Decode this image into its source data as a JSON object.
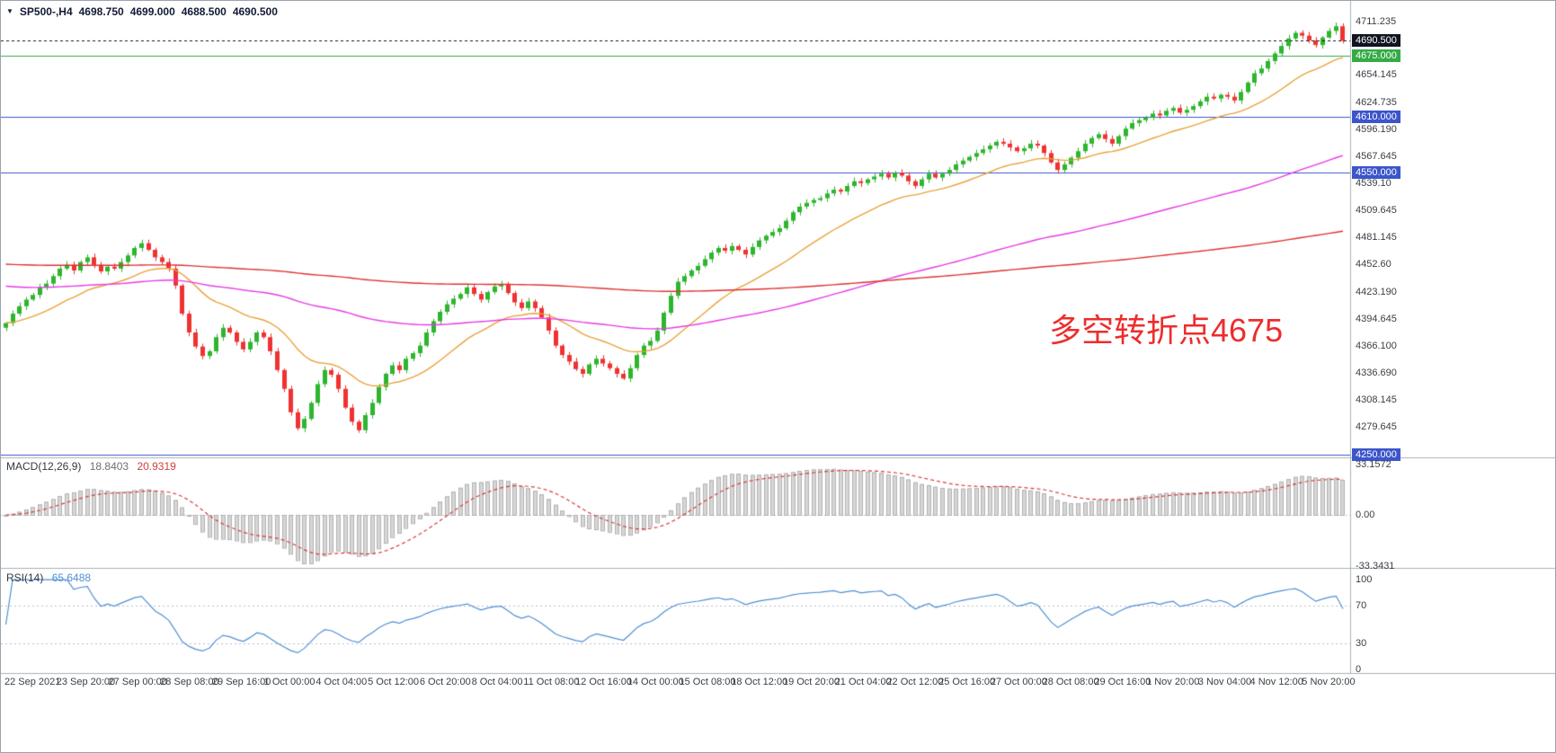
{
  "window": {
    "background": "#ffffff",
    "border_color": "#9aa3ad"
  },
  "header": {
    "dropdown_icon": "▼",
    "symbol_period": "SP500-,H4",
    "open": "4698.750",
    "high": "4699.000",
    "low": "4688.500",
    "close": "4690.500"
  },
  "annotation": {
    "text": "多空转折点4675",
    "color": "#ee2c2c"
  },
  "price_axis": {
    "ticks": [
      "4711.235",
      "4654.145",
      "4624.735",
      "4596.190",
      "4567.645",
      "4539.10",
      "4509.645",
      "4481.145",
      "4452.60",
      "4423.190",
      "4394.645",
      "4366.100",
      "4336.690",
      "4308.145",
      "4279.645"
    ]
  },
  "price_levels": [
    {
      "label": "4690.500",
      "value": 4690.5,
      "color": "#10141f",
      "style": "dashed"
    },
    {
      "label": "4675.000",
      "value": 4675.0,
      "color": "#35ab45",
      "style": "solid"
    },
    {
      "label": "4610.000",
      "value": 4610.0,
      "color": "#3c55cb",
      "style": "solid"
    },
    {
      "label": "4550.000",
      "value": 4550.0,
      "color": "#3c55cb",
      "style": "solid"
    },
    {
      "label": "4250.000",
      "value": 4250.0,
      "color": "#3c55cb",
      "style": "solid"
    }
  ],
  "macd_panel": {
    "label": "MACD(12,26,9)",
    "value_main": "18.8403",
    "value_signal": "20.9319",
    "ticks": [
      {
        "label": "33.1572",
        "value": 33.1572
      },
      {
        "label": "0.00",
        "value": 0
      },
      {
        "label": "-33.3431",
        "value": -33.3431
      }
    ]
  },
  "rsi_panel": {
    "label": "RSI(14)",
    "value": "65.6488",
    "ticks": [
      {
        "label": "100",
        "value": 100
      },
      {
        "label": "70",
        "value": 70
      },
      {
        "label": "30",
        "value": 30
      },
      {
        "label": "0",
        "value": 0
      }
    ],
    "guide_levels": [
      70,
      30
    ]
  },
  "time_axis": {
    "labels": [
      "22 Sep 2021",
      "23 Sep 20:00",
      "27 Sep 00:00",
      "28 Sep 08:00",
      "29 Sep 16:00",
      "1 Oct 00:00",
      "4 Oct 04:00",
      "5 Oct 12:00",
      "6 Oct 20:00",
      "8 Oct 04:00",
      "11 Oct 08:00",
      "12 Oct 16:00",
      "14 Oct 00:00",
      "15 Oct 08:00",
      "18 Oct 12:00",
      "19 Oct 20:00",
      "21 Oct 04:00",
      "22 Oct 12:00",
      "25 Oct 16:00",
      "27 Oct 00:00",
      "28 Oct 08:00",
      "29 Oct 16:00",
      "1 Nov 20:00",
      "3 Nov 04:00",
      "4 Nov 12:00",
      "5 Nov 20:00"
    ]
  },
  "chart_data": {
    "type": "candlestick",
    "symbol": "SP500-",
    "timeframe": "H4",
    "title": "SP500-,H4",
    "x_range": {
      "start": "22 Sep 2021",
      "end": "5 Nov 2021"
    },
    "y_range": {
      "top": 4733,
      "bottom": 4248
    },
    "current_bar": {
      "open": 4698.75,
      "high": 4699.0,
      "low": 4688.5,
      "close": 4690.5
    },
    "closes": [
      4390,
      4400,
      4408,
      4415,
      4420,
      4428,
      4432,
      4440,
      4448,
      4452,
      4446,
      4455,
      4460,
      4452,
      4445,
      4450,
      4448,
      4455,
      4462,
      4470,
      4475,
      4468,
      4460,
      4455,
      4448,
      4430,
      4400,
      4380,
      4365,
      4355,
      4360,
      4375,
      4385,
      4380,
      4370,
      4362,
      4370,
      4380,
      4375,
      4360,
      4340,
      4320,
      4295,
      4278,
      4288,
      4305,
      4325,
      4340,
      4335,
      4320,
      4300,
      4285,
      4276,
      4292,
      4305,
      4322,
      4336,
      4345,
      4340,
      4352,
      4358,
      4366,
      4380,
      4392,
      4402,
      4410,
      4416,
      4421,
      4428,
      4421,
      4415,
      4423,
      4429,
      4431,
      4422,
      4412,
      4406,
      4413,
      4406,
      4396,
      4382,
      4366,
      4356,
      4349,
      4341,
      4336,
      4346,
      4352,
      4347,
      4342,
      4336,
      4331,
      4342,
      4356,
      4366,
      4371,
      4382,
      4401,
      4419,
      4434,
      4440,
      4446,
      4451,
      4458,
      4465,
      4470,
      4467,
      4472,
      4468,
      4463,
      4471,
      4478,
      4483,
      4487,
      4491,
      4499,
      4508,
      4514,
      4518,
      4521,
      4523,
      4528,
      4532,
      4530,
      4536,
      4541,
      4539,
      4543,
      4546,
      4549,
      4545,
      4550,
      4547,
      4541,
      4536,
      4543,
      4549,
      4545,
      4549,
      4553,
      4559,
      4563,
      4567,
      4571,
      4575,
      4579,
      4583,
      4581,
      4577,
      4573,
      4576,
      4581,
      4579,
      4571,
      4561,
      4553,
      4559,
      4566,
      4573,
      4581,
      4587,
      4591,
      4586,
      4581,
      4589,
      4597,
      4603,
      4606,
      4609,
      4613,
      4611,
      4616,
      4619,
      4614,
      4617,
      4621,
      4626,
      4631,
      4629,
      4633,
      4631,
      4627,
      4636,
      4646,
      4656,
      4661,
      4669,
      4677,
      4685,
      4693,
      4699,
      4696,
      4691,
      4686,
      4694,
      4701,
      4706,
      4690.5
    ],
    "moving_averages": [
      {
        "name": "fast-ma",
        "period": 20,
        "seed": null,
        "color_key": "ma_fast"
      },
      {
        "name": "medium-ma",
        "period": 110,
        "seed": 4430,
        "color_key": "ma_medium"
      },
      {
        "name": "slow-ma",
        "period": 380,
        "seed": 4453,
        "color_key": "ma_slow"
      }
    ],
    "indicators": {
      "macd": {
        "fast": 12,
        "slow": 26,
        "signal": 9,
        "current_macd": 18.8403,
        "current_signal": 20.9319
      },
      "rsi": {
        "period": 14,
        "current": 65.6488
      }
    },
    "colors": {
      "up": "#2eb52e",
      "down": "#ef3232",
      "ma_fast": "#e9a23b",
      "ma_medium": "#e73ae7",
      "ma_slow": "#de3232",
      "macd_hist": "#d6d6d6",
      "macd_hist_border": "#b3b3b3",
      "macd_signal": "#d93a3a",
      "rsi_line": "#4f8fd4"
    }
  }
}
